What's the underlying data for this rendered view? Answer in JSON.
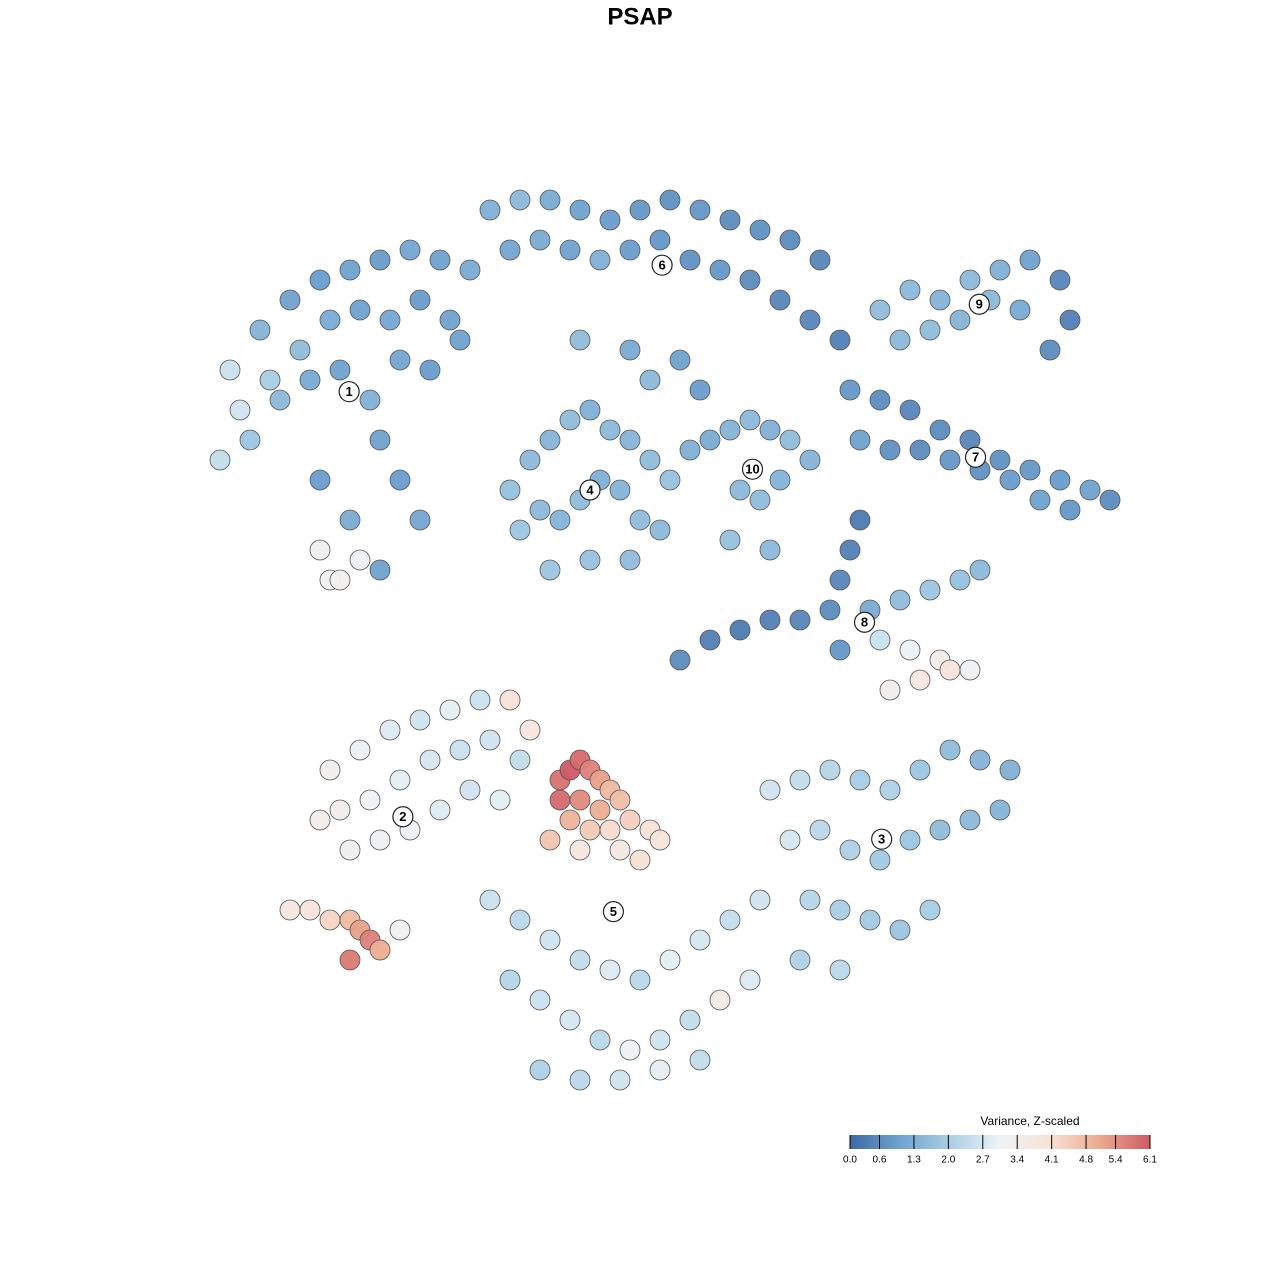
{
  "chart_data": {
    "type": "scatter",
    "title": "PSAP",
    "xlim": [
      0,
      100
    ],
    "ylim": [
      0,
      100
    ],
    "colorbar": {
      "title": "Variance, Z-scaled",
      "lim": [
        0,
        6.1
      ],
      "ticks": [
        {
          "value": 0,
          "label": "0.0"
        },
        0.6,
        1.3,
        {
          "value": 2,
          "label": "2.0"
        },
        2.7,
        3.4,
        4.1,
        4.8,
        5.4,
        6.1
      ],
      "colorscale": [
        "#3d6aa3",
        "#6fa3d0",
        "#a9cfe5",
        "#eef3f6",
        "#f7e2d6",
        "#eca98e",
        "#cf5a65"
      ]
    },
    "series": [
      {
        "name": "1",
        "x": [
          5,
          8,
          11,
          14,
          17,
          20,
          23,
          26,
          29,
          6,
          9,
          12,
          15,
          18,
          21,
          24,
          27,
          4,
          7,
          10,
          13,
          16,
          19,
          22,
          25,
          28,
          14,
          17,
          20,
          15,
          14,
          16,
          18,
          20,
          22,
          24
        ],
        "y": [
          73,
          77,
          80,
          82,
          83,
          84,
          85,
          84,
          83,
          69,
          72,
          75,
          78,
          79,
          78,
          80,
          78,
          64,
          66,
          70,
          72,
          73,
          70,
          74,
          73,
          76,
          62,
          58,
          66,
          52,
          55,
          52,
          54,
          53,
          62,
          58
        ],
        "values": [
          2.5,
          1.4,
          1.0,
          0.9,
          1.0,
          0.9,
          1.1,
          1.0,
          1.2,
          2.6,
          2.0,
          1.6,
          1.2,
          1.0,
          1.1,
          0.9,
          1.0,
          2.4,
          1.8,
          1.5,
          1.2,
          1.0,
          1.3,
          1.1,
          0.9,
          1.0,
          0.9,
          1.2,
          1.0,
          3.2,
          3.2,
          3.3,
          3.0,
          1.0,
          0.9,
          1.1
        ]
      },
      {
        "name": "6",
        "x": [
          31,
          34,
          37,
          40,
          43,
          46,
          49,
          52,
          55,
          58,
          61,
          64,
          33,
          36,
          39,
          42,
          45,
          48,
          51,
          54,
          57,
          60,
          63,
          66,
          40,
          45,
          50,
          52,
          47
        ],
        "y": [
          89,
          90,
          90,
          89,
          88,
          89,
          90,
          89,
          88,
          87,
          86,
          84,
          85,
          86,
          85,
          84,
          85,
          86,
          84,
          83,
          82,
          80,
          78,
          76,
          76,
          75,
          74,
          71,
          72
        ],
        "values": [
          1.3,
          1.5,
          1.2,
          1.0,
          0.9,
          0.8,
          0.7,
          0.8,
          0.6,
          0.7,
          0.6,
          0.5,
          1.1,
          1.2,
          1.0,
          1.3,
          0.9,
          0.8,
          0.7,
          0.8,
          0.6,
          0.5,
          0.5,
          0.4,
          1.6,
          1.2,
          1.0,
          0.9,
          1.5
        ]
      },
      {
        "name": "9",
        "x": [
          70,
          73,
          76,
          79,
          82,
          85,
          88,
          89,
          72,
          75,
          78,
          81,
          84,
          87
        ],
        "y": [
          79,
          81,
          80,
          82,
          83,
          84,
          82,
          78,
          76,
          77,
          78,
          80,
          79,
          75
        ],
        "values": [
          1.6,
          1.5,
          1.4,
          1.5,
          1.3,
          1.0,
          0.5,
          0.4,
          1.5,
          1.6,
          1.4,
          1.5,
          1.2,
          0.6
        ]
      },
      {
        "name": "7",
        "x": [
          67,
          70,
          73,
          76,
          79,
          82,
          85,
          88,
          91,
          93,
          68,
          71,
          74,
          77,
          80,
          83,
          86,
          89
        ],
        "y": [
          71,
          70,
          69,
          67,
          66,
          64,
          63,
          62,
          61,
          60,
          66,
          65,
          65,
          64,
          63,
          62,
          60,
          59
        ],
        "values": [
          0.8,
          0.6,
          0.5,
          0.6,
          0.5,
          0.7,
          0.8,
          0.9,
          1.0,
          0.6,
          1.0,
          0.7,
          0.6,
          0.8,
          0.7,
          0.9,
          1.0,
          0.8
        ]
      },
      {
        "name": "4",
        "x": [
          33,
          35,
          37,
          39,
          41,
          43,
          45,
          47,
          49,
          34,
          36,
          38,
          40,
          42,
          44,
          46,
          48,
          37,
          41,
          45
        ],
        "y": [
          61,
          64,
          66,
          68,
          69,
          67,
          66,
          64,
          62,
          57,
          59,
          58,
          60,
          62,
          61,
          58,
          57,
          53,
          54,
          54
        ],
        "values": [
          1.7,
          1.5,
          1.4,
          1.6,
          1.3,
          1.5,
          1.4,
          1.6,
          1.7,
          1.8,
          1.5,
          1.4,
          1.6,
          1.3,
          1.4,
          1.6,
          1.5,
          1.8,
          1.7,
          1.6
        ]
      },
      {
        "name": "10",
        "x": [
          51,
          53,
          55,
          57,
          59,
          61,
          63,
          56,
          58,
          60,
          55,
          59
        ],
        "y": [
          65,
          66,
          67,
          68,
          67,
          66,
          64,
          61,
          60,
          62,
          56,
          55
        ],
        "values": [
          1.3,
          1.2,
          1.4,
          1.5,
          1.3,
          1.6,
          1.4,
          1.5,
          1.6,
          1.4,
          1.7,
          1.5
        ]
      },
      {
        "name": "8",
        "x": [
          50,
          53,
          56,
          59,
          62,
          65,
          66,
          67,
          68,
          66,
          69,
          72,
          75,
          78,
          80,
          70,
          73,
          76,
          79,
          71,
          74,
          77
        ],
        "y": [
          44,
          46,
          47,
          48,
          48,
          49,
          52,
          55,
          58,
          45,
          49,
          50,
          51,
          52,
          53,
          46,
          45,
          44,
          43,
          41,
          42,
          43
        ],
        "values": [
          0.6,
          0.4,
          0.3,
          0.4,
          0.5,
          0.6,
          0.5,
          0.4,
          0.3,
          0.8,
          1.2,
          1.6,
          1.8,
          1.7,
          1.5,
          2.5,
          3.0,
          3.5,
          3.2,
          3.4,
          3.8,
          3.9
        ]
      },
      {
        "name": "2",
        "x": [
          15,
          18,
          21,
          24,
          27,
          30,
          33,
          16,
          19,
          22,
          25,
          28,
          31,
          34,
          17,
          20,
          23,
          26,
          29,
          32,
          14,
          35,
          11,
          13,
          15,
          17,
          18,
          19,
          20,
          17,
          22
        ],
        "y": [
          33,
          35,
          37,
          38,
          39,
          40,
          40,
          29,
          30,
          32,
          34,
          35,
          36,
          34,
          25,
          26,
          27,
          29,
          31,
          30,
          28,
          37,
          19,
          19,
          18,
          18,
          17,
          16,
          15,
          14,
          17
        ],
        "values": [
          3.3,
          3.0,
          2.8,
          2.6,
          2.9,
          2.5,
          4.0,
          3.4,
          3.1,
          2.9,
          2.7,
          2.5,
          2.6,
          2.4,
          3.3,
          3.2,
          3.0,
          2.8,
          2.6,
          2.9,
          3.4,
          3.8,
          3.8,
          3.9,
          4.3,
          4.8,
          5.2,
          5.6,
          5.0,
          5.7,
          3.2
        ]
      },
      {
        "name": "5",
        "x": [
          38,
          39,
          40,
          41,
          42,
          43,
          38,
          40,
          42,
          44,
          39,
          41,
          43,
          45,
          47,
          37,
          40,
          44,
          46,
          48,
          31,
          34,
          37,
          40,
          43,
          46,
          49,
          52,
          55,
          58,
          33,
          36,
          39,
          42,
          45,
          48,
          51,
          54,
          57,
          36,
          40,
          44,
          48,
          52
        ],
        "y": [
          32,
          33,
          34,
          33,
          32,
          31,
          30,
          30,
          29,
          30,
          28,
          27,
          27,
          28,
          27,
          26,
          25,
          25,
          24,
          26,
          20,
          18,
          16,
          14,
          13,
          12,
          14,
          16,
          18,
          20,
          12,
          10,
          8,
          6,
          5,
          6,
          8,
          10,
          12,
          3,
          2,
          2,
          3,
          4
        ],
        "values": [
          5.8,
          6.1,
          5.9,
          5.6,
          5.2,
          4.8,
          5.9,
          5.5,
          5.0,
          4.7,
          4.9,
          4.5,
          4.2,
          4.4,
          4.0,
          4.6,
          3.8,
          3.7,
          4.1,
          3.9,
          2.5,
          2.3,
          2.6,
          2.4,
          2.8,
          2.3,
          2.9,
          2.7,
          2.4,
          2.6,
          2.2,
          2.5,
          2.7,
          2.3,
          3.0,
          2.6,
          2.4,
          3.6,
          2.8,
          2.1,
          2.3,
          2.6,
          2.9,
          2.4
        ]
      },
      {
        "name": "3",
        "x": [
          59,
          62,
          65,
          68,
          71,
          74,
          77,
          80,
          83,
          61,
          64,
          67,
          70,
          73,
          76,
          79,
          82,
          63,
          66,
          69,
          72,
          75,
          62,
          66
        ],
        "y": [
          31,
          32,
          33,
          32,
          31,
          33,
          35,
          34,
          33,
          26,
          27,
          25,
          24,
          26,
          27,
          28,
          29,
          20,
          19,
          18,
          17,
          19,
          14,
          13
        ],
        "values": [
          2.6,
          2.4,
          2.2,
          2.0,
          2.1,
          1.8,
          1.6,
          1.4,
          1.3,
          2.7,
          2.3,
          2.1,
          1.9,
          1.8,
          1.6,
          1.5,
          1.4,
          2.2,
          2.0,
          1.9,
          1.8,
          2.0,
          2.1,
          2.3
        ]
      }
    ]
  }
}
